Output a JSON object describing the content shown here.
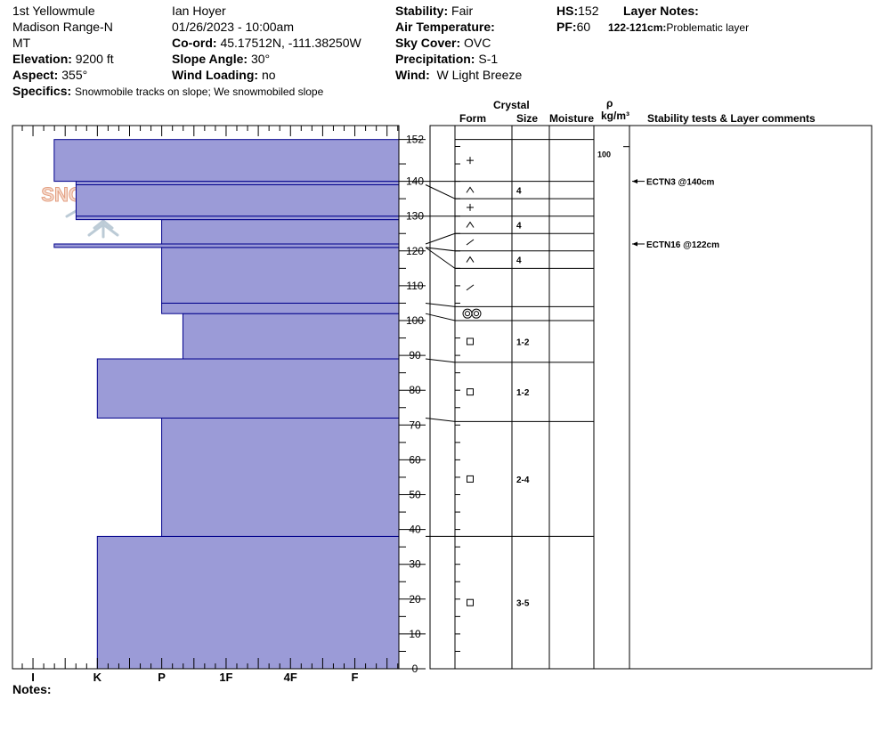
{
  "header": {
    "location": "1st Yellowmule",
    "range": "Madison Range-N",
    "state": "MT",
    "elevation_label": "Elevation:",
    "elevation_value": "9200 ft",
    "aspect_label": "Aspect:",
    "aspect_value": "355°",
    "specifics_label": "Specifics:",
    "specifics_value": "Snowmobile tracks on slope; We snowmobiled slope",
    "observer": "Ian Hoyer",
    "datetime": "01/26/2023 - 10:00am",
    "coord_label": "Co-ord:",
    "coord_value": "45.17512N, -111.38250W",
    "slope_label": "Slope Angle:",
    "slope_value": "30°",
    "wind_loading_label": "Wind Loading:",
    "wind_loading_value": "no",
    "stability_label": "Stability:",
    "stability_value": "Fair",
    "air_temp_label": "Air Temperature:",
    "air_temp_value": "",
    "sky_label": "Sky Cover:",
    "sky_value": "OVC",
    "precip_label": "Precipitation:",
    "precip_value": "S-1",
    "wind_label": "Wind:",
    "wind_value": "W Light Breeze",
    "hs_label": "HS:",
    "hs_value": "152",
    "pf_label": "PF:",
    "pf_value": "60",
    "layer_notes_label": "Layer Notes:",
    "layer_note_range": "122-121cm:",
    "layer_note_text": "Problematic layer"
  },
  "logo_text": "SNOW PILOT",
  "notes_label": "Notes:",
  "colors": {
    "hardness_fill": "#9b9bd7",
    "hardness_stroke": "#00008b"
  },
  "table_headers": {
    "crystal": "Crystal",
    "form": "Form",
    "size": "Size",
    "moisture": "Moisture",
    "rho": "ρ",
    "density_unit": "kg/m³",
    "stability": "Stability tests & Layer comments"
  },
  "chart_data": {
    "type": "bar",
    "title": "",
    "ylim": [
      0,
      152
    ],
    "y_ticks": [
      0,
      10,
      20,
      30,
      40,
      50,
      60,
      70,
      80,
      90,
      100,
      110,
      120,
      130,
      140,
      152
    ],
    "x_ticks": [
      "I",
      "K",
      "P",
      "1F",
      "4F",
      "F"
    ],
    "hardness_layers": [
      {
        "top": 38,
        "bottom": 0,
        "hardness": 1.0
      },
      {
        "top": 72,
        "bottom": 38,
        "hardness": 2.0
      },
      {
        "top": 89,
        "bottom": 72,
        "hardness": 1.0
      },
      {
        "top": 102,
        "bottom": 89,
        "hardness": 2.33
      },
      {
        "top": 105,
        "bottom": 102,
        "hardness": 2.0
      },
      {
        "top": 121,
        "bottom": 105,
        "hardness": 2.0
      },
      {
        "top": 122,
        "bottom": 121,
        "hardness": 0.33
      },
      {
        "top": 129,
        "bottom": 122,
        "hardness": 2.0
      },
      {
        "top": 130,
        "bottom": 129,
        "hardness": 0.67
      },
      {
        "top": 139,
        "bottom": 130,
        "hardness": 0.67
      },
      {
        "top": 140,
        "bottom": 139,
        "hardness": 0.67
      },
      {
        "top": 152,
        "bottom": 140,
        "hardness": 0.33
      }
    ],
    "profile_rows": [
      {
        "top": 152,
        "bottom": 140,
        "form": "+",
        "size": ""
      },
      {
        "top": 140,
        "bottom": 135,
        "form": "^",
        "size": "4"
      },
      {
        "top": 135,
        "bottom": 130,
        "form": "+",
        "size": ""
      },
      {
        "top": 130,
        "bottom": 125,
        "form": "^",
        "size": "4"
      },
      {
        "top": 125,
        "bottom": 120,
        "form": "/",
        "size": ""
      },
      {
        "top": 120,
        "bottom": 115,
        "form": "^",
        "size": "4"
      },
      {
        "top": 115,
        "bottom": 104,
        "form": "/",
        "size": ""
      },
      {
        "top": 104,
        "bottom": 100,
        "form": "oo",
        "size": ""
      },
      {
        "top": 100,
        "bottom": 88,
        "form": "sq",
        "size": "1-2"
      },
      {
        "top": 88,
        "bottom": 71,
        "form": "sq",
        "size": "1-2"
      },
      {
        "top": 71,
        "bottom": 38,
        "form": "sq",
        "size": "2-4"
      },
      {
        "top": 38,
        "bottom": 0,
        "form": "sq",
        "size": "3-5"
      }
    ],
    "density": [
      {
        "depth": 150,
        "value": "100"
      }
    ],
    "stability_tests": [
      {
        "depth": 140,
        "text": "ECTN3 @140cm"
      },
      {
        "depth": 122,
        "text": "ECTN16 @122cm"
      }
    ]
  }
}
